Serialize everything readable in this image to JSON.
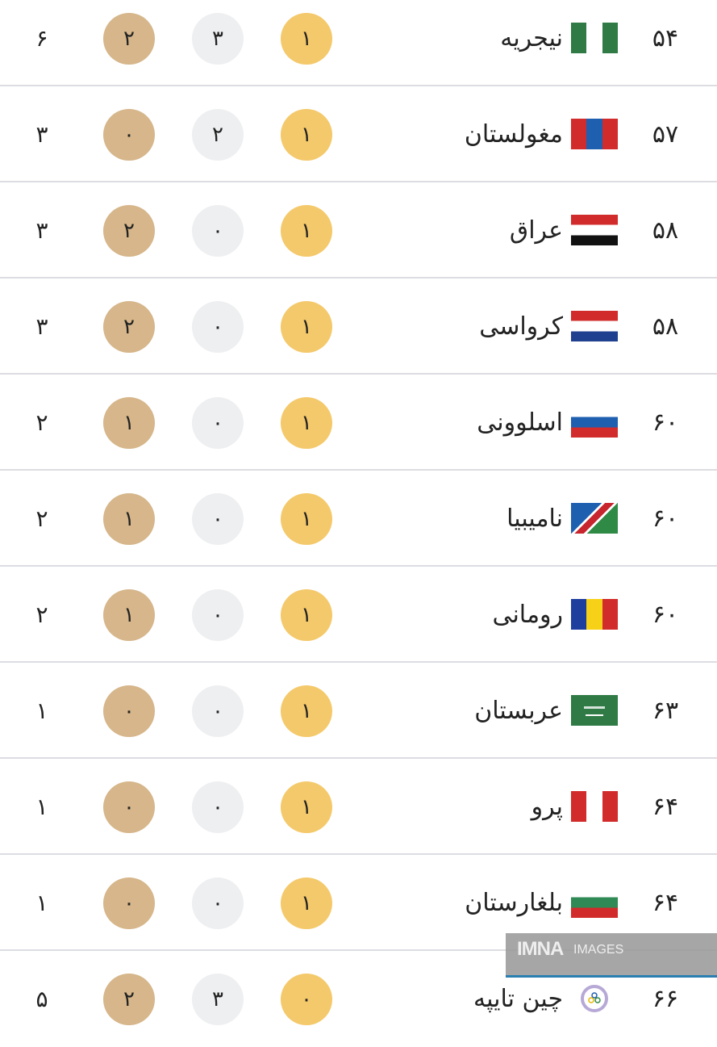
{
  "rows": [
    {
      "rank": "۵۴",
      "country": "نیجریه",
      "flag": "nigeria-flag",
      "gold": "۱",
      "silver": "۳",
      "bronze": "۲",
      "total": "۶"
    },
    {
      "rank": "۵۷",
      "country": "مغولستان",
      "flag": "mongolia-flag",
      "gold": "۱",
      "silver": "۲",
      "bronze": "۰",
      "total": "۳"
    },
    {
      "rank": "۵۸",
      "country": "عراق",
      "flag": "iraq-flag",
      "gold": "۱",
      "silver": "۰",
      "bronze": "۲",
      "total": "۳"
    },
    {
      "rank": "۵۸",
      "country": "کرواسی",
      "flag": "croatia-flag",
      "gold": "۱",
      "silver": "۰",
      "bronze": "۲",
      "total": "۳"
    },
    {
      "rank": "۶۰",
      "country": "اسلوونی",
      "flag": "slovenia-flag",
      "gold": "۱",
      "silver": "۰",
      "bronze": "۱",
      "total": "۲"
    },
    {
      "rank": "۶۰",
      "country": "نامیبیا",
      "flag": "namibia-flag",
      "gold": "۱",
      "silver": "۰",
      "bronze": "۱",
      "total": "۲"
    },
    {
      "rank": "۶۰",
      "country": "رومانی",
      "flag": "romania-flag",
      "gold": "۱",
      "silver": "۰",
      "bronze": "۱",
      "total": "۲"
    },
    {
      "rank": "۶۳",
      "country": "عربستان",
      "flag": "saudi-arabia-flag",
      "gold": "۱",
      "silver": "۰",
      "bronze": "۰",
      "total": "۱"
    },
    {
      "rank": "۶۴",
      "country": "پرو",
      "flag": "peru-flag",
      "gold": "۱",
      "silver": "۰",
      "bronze": "۰",
      "total": "۱"
    },
    {
      "rank": "۶۴",
      "country": "بلغارستان",
      "flag": "bulgaria-flag",
      "gold": "۱",
      "silver": "۰",
      "bronze": "۰",
      "total": "۱"
    },
    {
      "rank": "۶۶",
      "country": "چین تایپه",
      "flag": "chinese-taipei-flag",
      "gold": "۰",
      "silver": "۳",
      "bronze": "۲",
      "total": "۵"
    }
  ],
  "colors": {
    "gold": "#f4c96b",
    "silver": "#eeeff1",
    "bronze": "#d6b68a"
  },
  "watermark": {
    "logo": "IMNA",
    "text": "IMAGES"
  }
}
